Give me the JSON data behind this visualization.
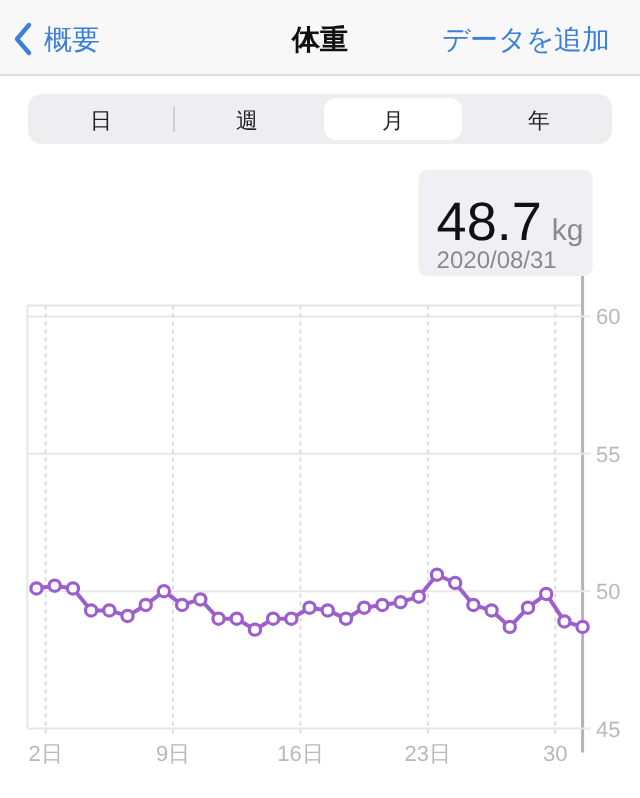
{
  "chart_data": {
    "type": "line",
    "title": "体重",
    "x": [
      "2020-08-01T12:00",
      "2020-08-02T12:00",
      "2020-08-03T12:00",
      "2020-08-04T12:00",
      "2020-08-05T12:00",
      "2020-08-06T12:00",
      "2020-08-07T12:00",
      "2020-08-08T12:00",
      "2020-08-09T12:00",
      "2020-08-10T12:00",
      "2020-08-11T12:00",
      "2020-08-12T12:00",
      "2020-08-13T12:00",
      "2020-08-14T12:00",
      "2020-08-15T12:00",
      "2020-08-16T12:00",
      "2020-08-17T12:00",
      "2020-08-18T12:00",
      "2020-08-19T12:00",
      "2020-08-20T12:00",
      "2020-08-21T12:00",
      "2020-08-22T12:00",
      "2020-08-23T12:00",
      "2020-08-24T12:00",
      "2020-08-25T12:00",
      "2020-08-26T12:00",
      "2020-08-27T12:00",
      "2020-08-28T12:00",
      "2020-08-29T12:00",
      "2020-08-30T12:00",
      "2020-08-31T12:00"
    ],
    "series": [
      {
        "color": "#9c5fcb",
        "values": [
          50.1,
          50.2,
          50.1,
          49.3,
          49.3,
          49.1,
          49.5,
          50.0,
          49.5,
          49.7,
          49.0,
          49.0,
          48.6,
          49.0,
          49.0,
          49.4,
          49.3,
          49.0,
          49.4,
          49.5,
          49.6,
          49.8,
          50.6,
          50.3,
          49.5,
          49.3,
          48.7,
          49.4,
          49.9,
          48.9,
          48.7
        ]
      }
    ],
    "xlim": [
      "2020-08-01T00:00",
      "2020-08-31T12:00"
    ],
    "xticks": [
      {
        "value": "2020-08-02",
        "label": "2日"
      },
      {
        "value": "2020-08-09",
        "label": "9日"
      },
      {
        "value": "2020-08-16",
        "label": "16日"
      },
      {
        "value": "2020-08-23",
        "label": "23日"
      },
      {
        "value": "2020-08-30",
        "label": "30"
      }
    ],
    "ylim": [
      45,
      60.4
    ],
    "yticks": [
      45,
      50,
      55,
      60
    ],
    "grid": true,
    "marker": "circle",
    "line_style": "solid",
    "annotations": [
      "概要",
      "データを追加",
      "日",
      "週",
      "月",
      "年",
      "48.7",
      "kg",
      "2020/08/31"
    ]
  }
}
